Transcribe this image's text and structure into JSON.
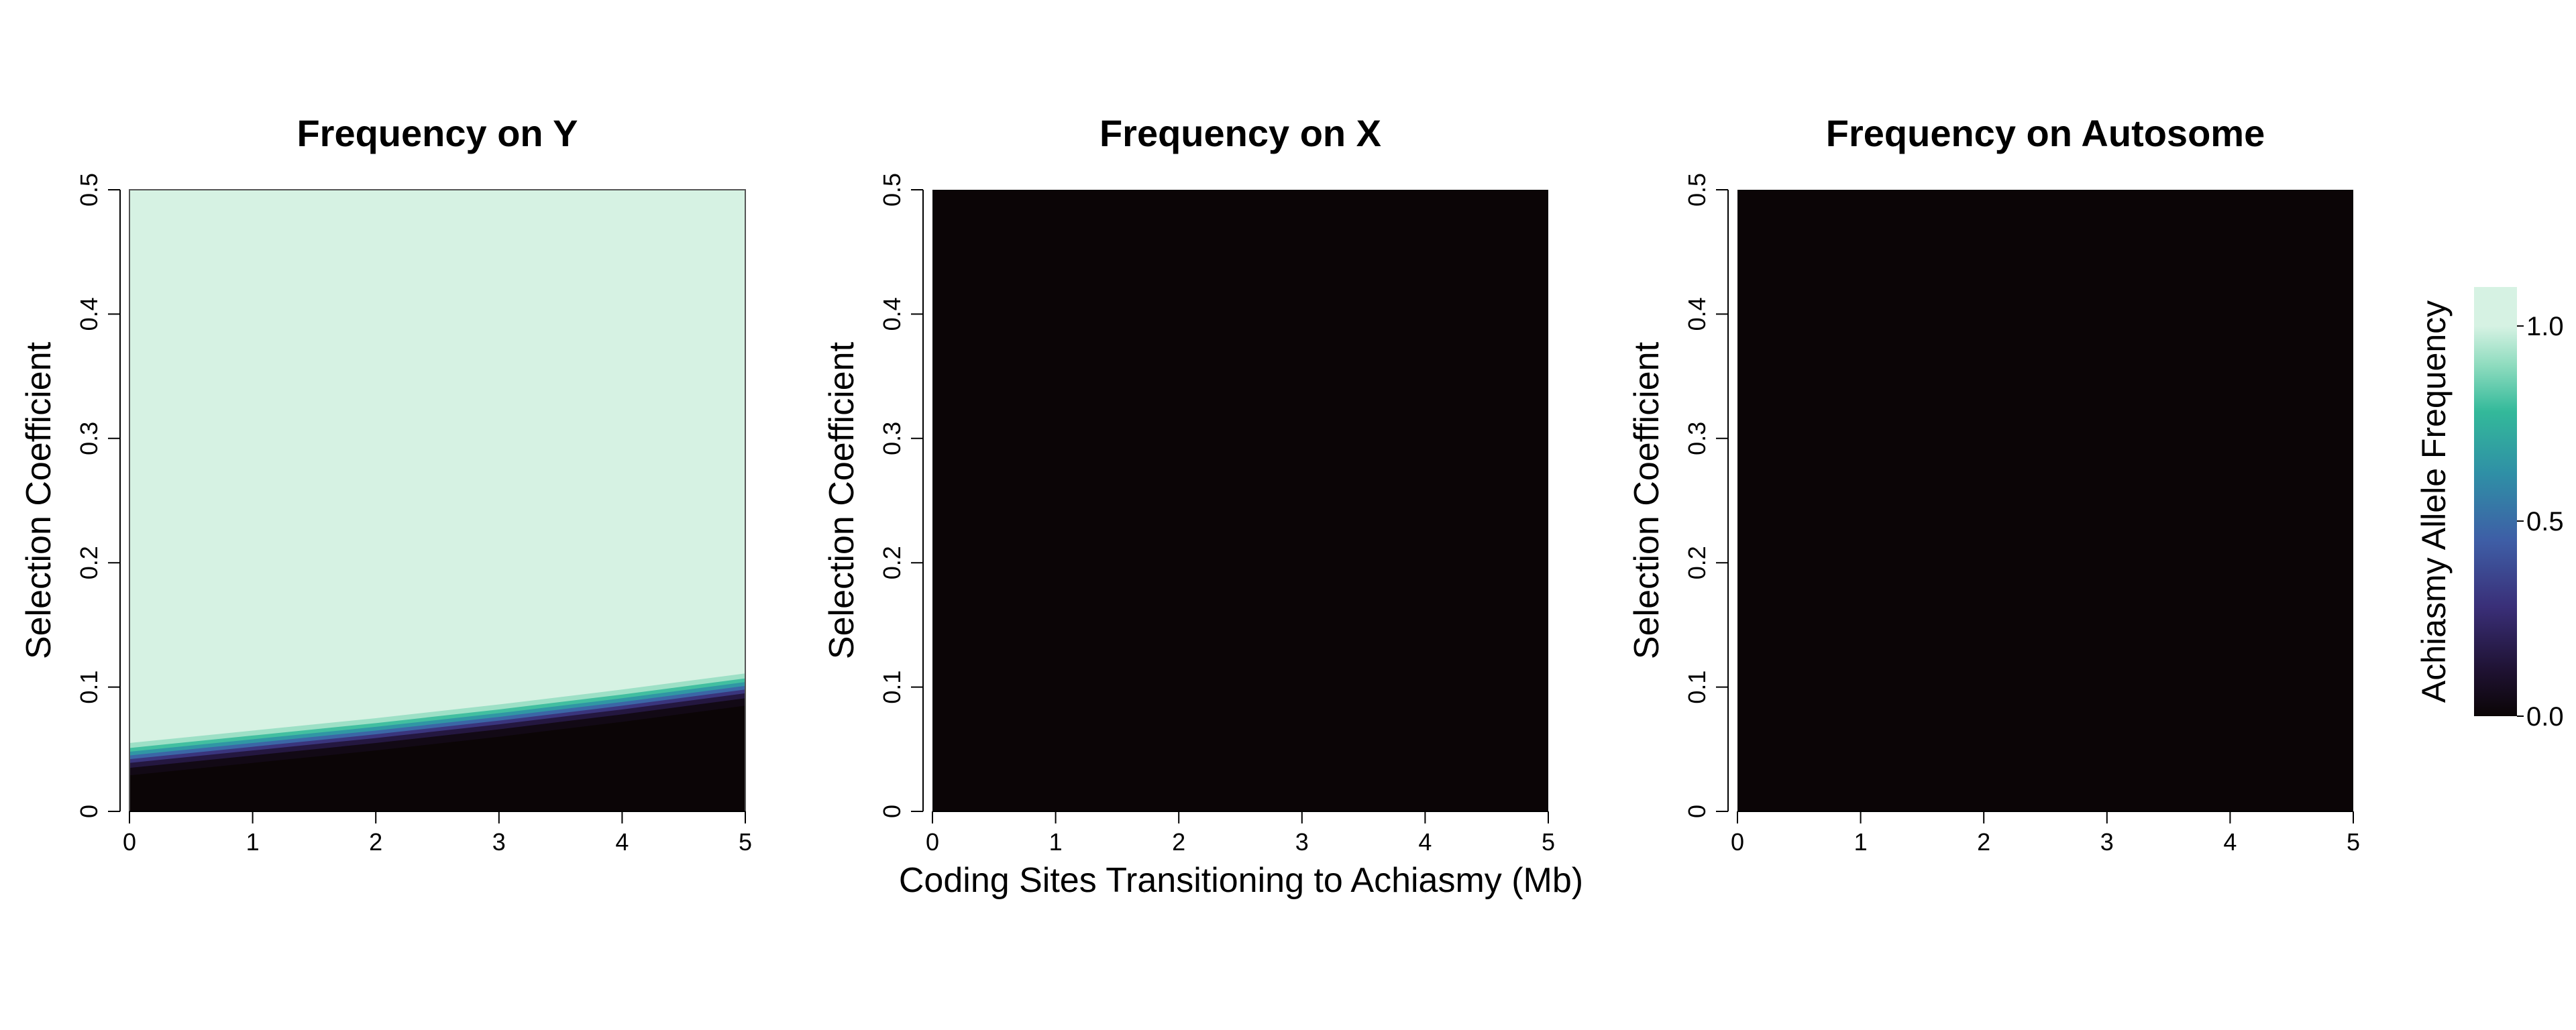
{
  "figure": {
    "shared_xlabel": "Coding Sites Transitioning to Achiasmy (Mb)"
  },
  "colormap": {
    "stops": [
      {
        "v": 0.0,
        "color": "#0b0506"
      },
      {
        "v": 0.12,
        "color": "#1f1233"
      },
      {
        "v": 0.28,
        "color": "#3a2f78"
      },
      {
        "v": 0.45,
        "color": "#3e5ea6"
      },
      {
        "v": 0.62,
        "color": "#2f8fa6"
      },
      {
        "v": 0.78,
        "color": "#33b99a"
      },
      {
        "v": 0.9,
        "color": "#8fdcbf"
      },
      {
        "v": 1.0,
        "color": "#d6f2e3"
      }
    ],
    "label": "Achiasmy Allele Frequency",
    "ticks": [
      "0.0",
      "0.5",
      "1.0"
    ],
    "tick_values": [
      0.0,
      0.5,
      1.0
    ],
    "range": [
      0.0,
      1.1
    ]
  },
  "chart_data": [
    {
      "type": "heatmap",
      "title": "Frequency on Y",
      "xlabel": "",
      "ylabel": "Selection Coefficient",
      "xlim": [
        0,
        5
      ],
      "ylim": [
        0,
        0.5
      ],
      "xticks": [
        "0",
        "1",
        "2",
        "3",
        "4",
        "5"
      ],
      "yticks": [
        "0",
        "0.1",
        "0.2",
        "0.3",
        "0.4",
        "0.5"
      ],
      "description_values": {
        "threshold_boundary": {
          "x": [
            0,
            1,
            2,
            3,
            4,
            5
          ],
          "y": [
            0.045,
            0.055,
            0.065,
            0.076,
            0.088,
            0.101
          ]
        },
        "frequency_above_boundary": 1.0,
        "frequency_below_boundary": 0.0
      }
    },
    {
      "type": "heatmap",
      "title": "Frequency on X",
      "xlabel": "Coding Sites Transitioning to Achiasmy (Mb)",
      "ylabel": "Selection Coefficient",
      "xlim": [
        0,
        5
      ],
      "ylim": [
        0,
        0.5
      ],
      "xticks": [
        "0",
        "1",
        "2",
        "3",
        "4",
        "5"
      ],
      "yticks": [
        "0",
        "0.1",
        "0.2",
        "0.3",
        "0.4",
        "0.5"
      ],
      "description_values": {
        "uniform_frequency": 0.0
      }
    },
    {
      "type": "heatmap",
      "title": "Frequency on Autosome",
      "xlabel": "",
      "ylabel": "Selection Coefficient",
      "xlim": [
        0,
        5
      ],
      "ylim": [
        0,
        0.5
      ],
      "xticks": [
        "0",
        "1",
        "2",
        "3",
        "4",
        "5"
      ],
      "yticks": [
        "0",
        "0.1",
        "0.2",
        "0.3",
        "0.4",
        "0.5"
      ],
      "description_values": {
        "uniform_frequency": 0.0
      }
    }
  ]
}
